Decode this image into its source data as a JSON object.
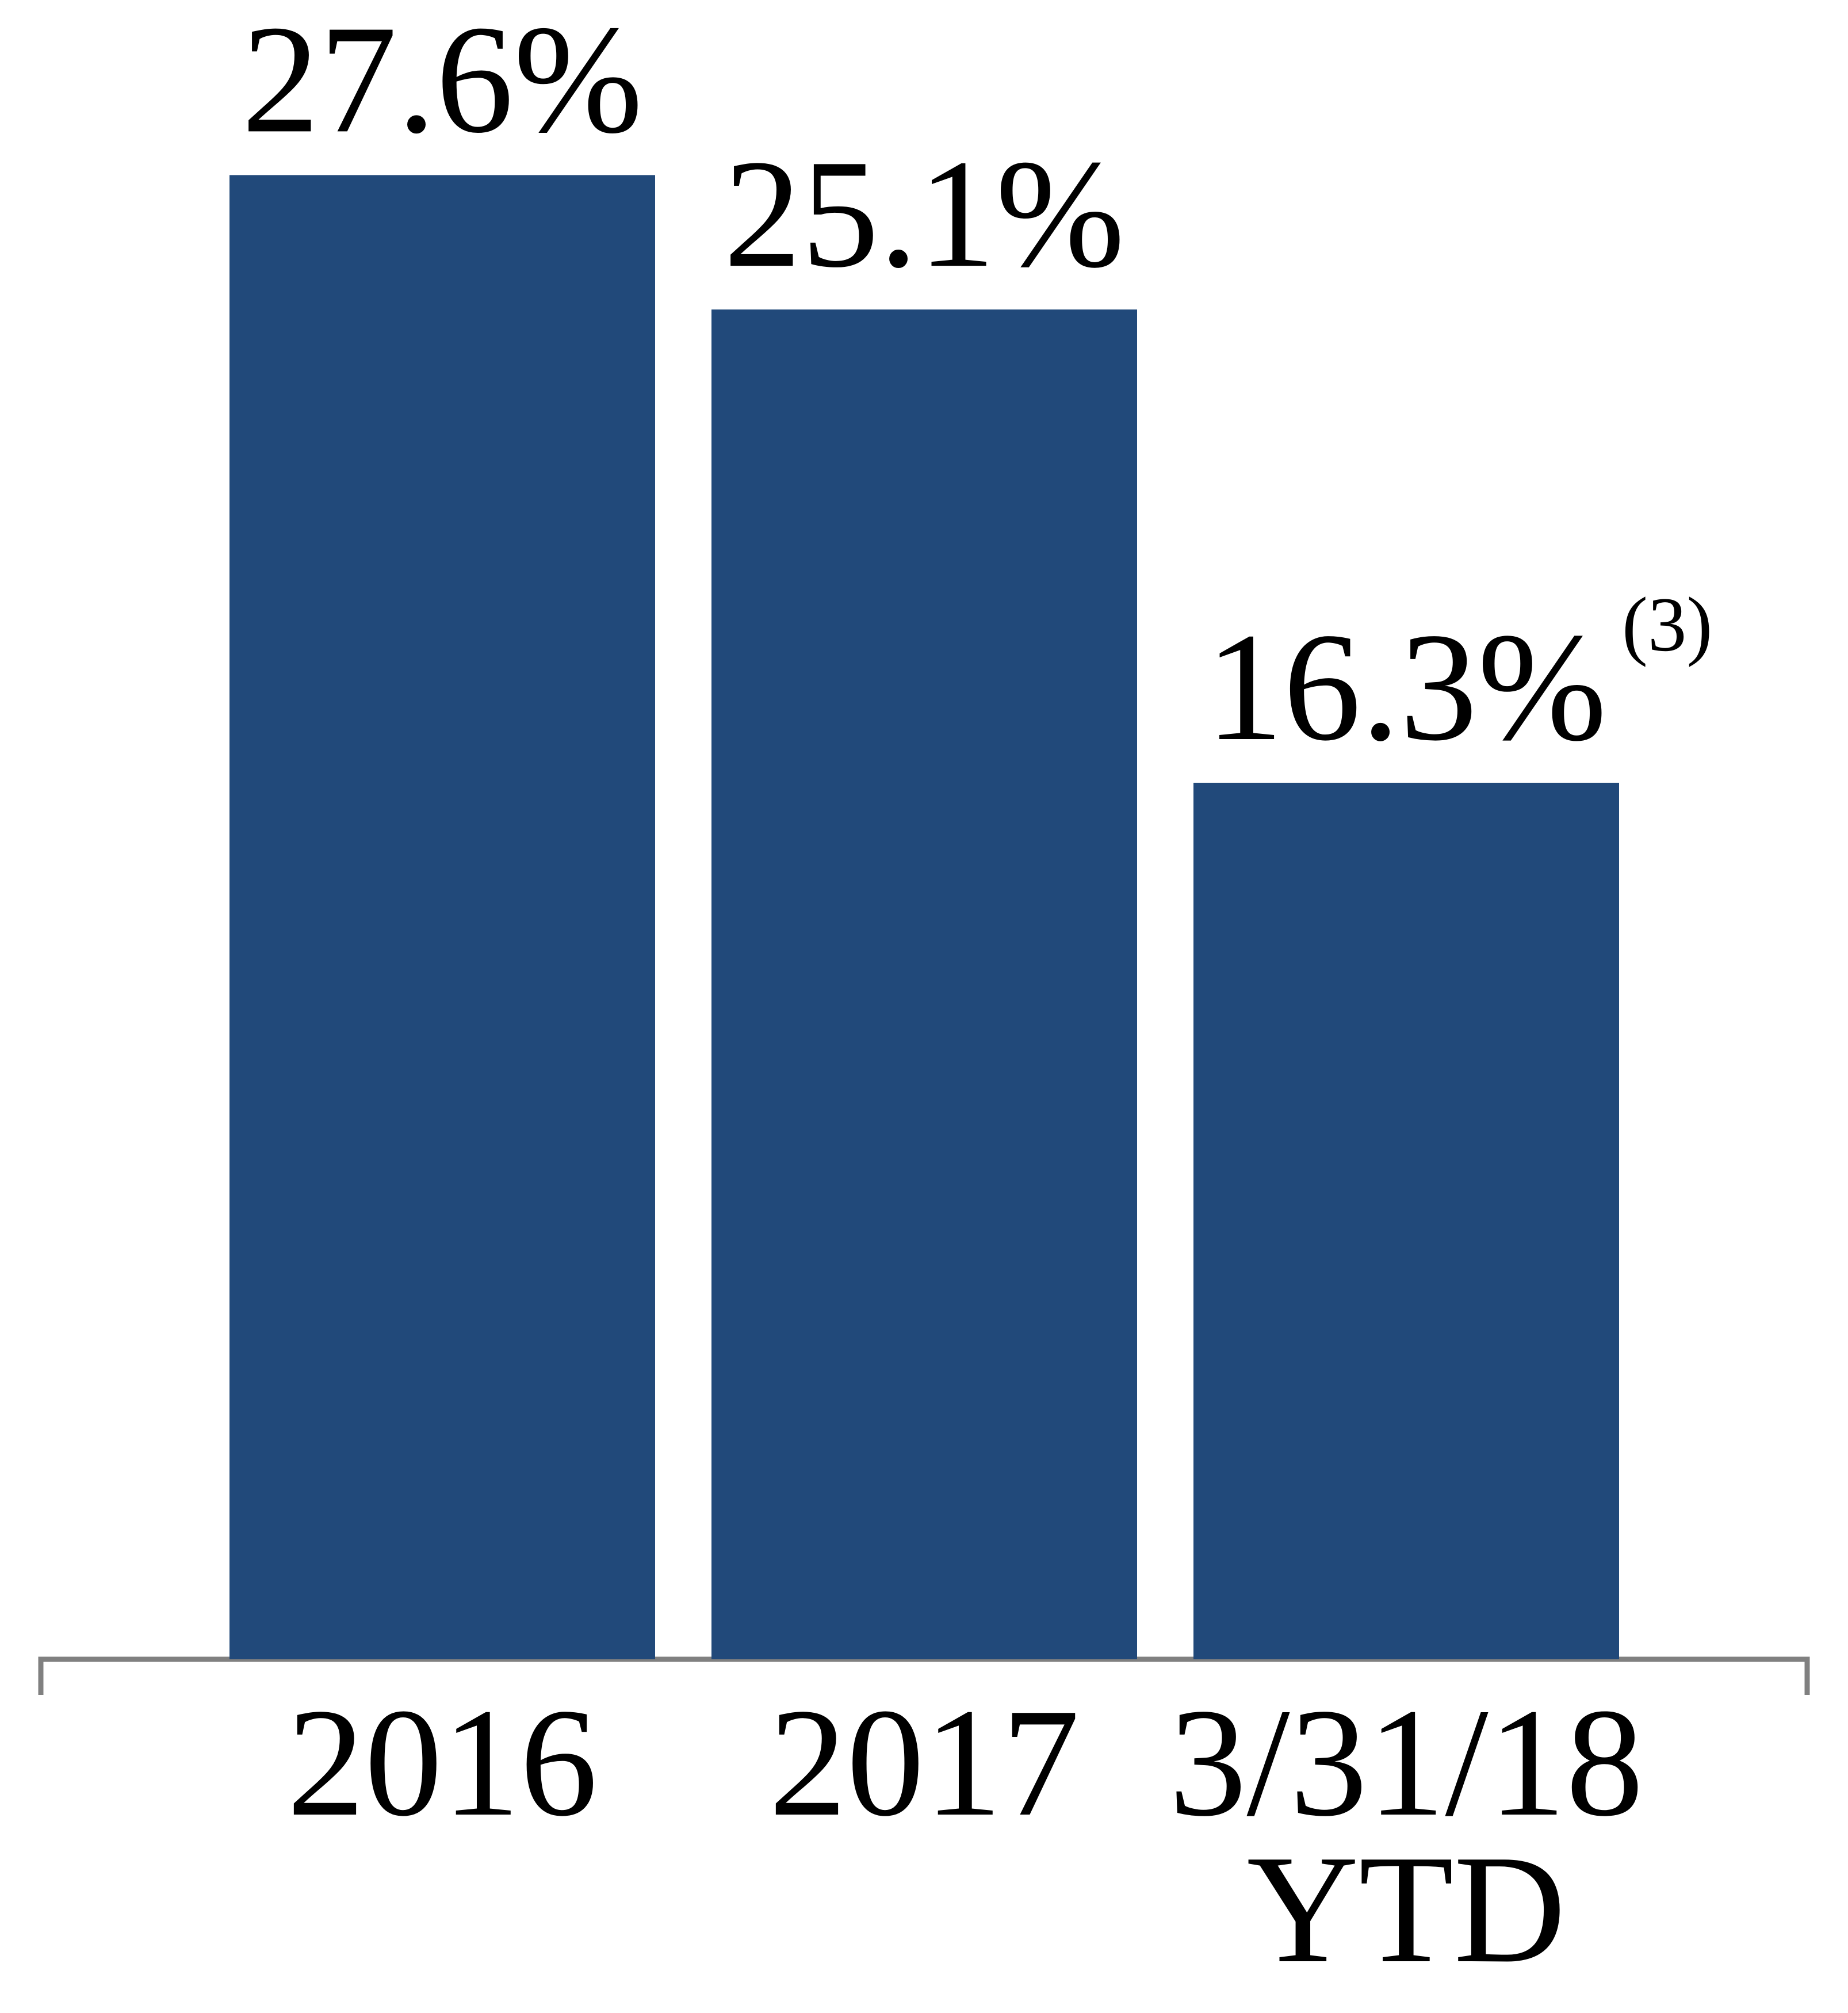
{
  "chart_data": {
    "type": "bar",
    "categories": [
      "2016",
      "2017",
      "3/31/18 YTD"
    ],
    "values": [
      27.6,
      25.1,
      16.3
    ],
    "value_labels": [
      "27.6%",
      "25.1%",
      "16.3%"
    ],
    "annotations": [
      "(3)"
    ],
    "color": "#21497a",
    "ylim": [
      0,
      30
    ]
  }
}
